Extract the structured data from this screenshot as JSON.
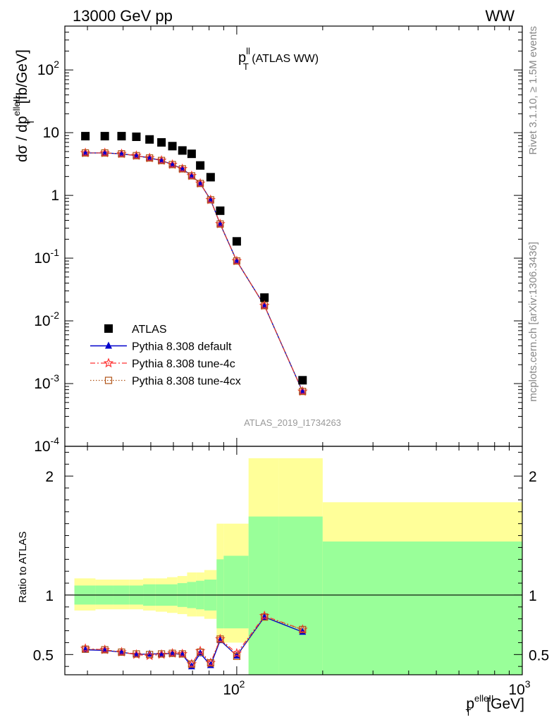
{
  "header": {
    "left": "13000 GeV pp",
    "right": "WW"
  },
  "side_text": {
    "rivet": "Rivet 3.1.10, ≥ 1.5M events",
    "mcplots": "mcplots.cern.ch [arXiv:1306.3436]"
  },
  "watermark": "ATLAS_2019_I1734263",
  "plot_title": {
    "main": "p",
    "sup": "ll",
    "sub": "T",
    "rest": " (ATLAS WW)"
  },
  "colors": {
    "atlas": "#000000",
    "default": "#0000cc",
    "tune4c": "#ff3333",
    "tune4cx": "#b05418",
    "band_inner": "#99ff99",
    "band_outer": "#ffff99"
  },
  "chart_data": [
    {
      "type": "scatter",
      "panel": "main",
      "ylabel": "dσ / dp_T^{elle ll} [fb/GeV]",
      "xscale": "log",
      "yscale": "log",
      "xlim": [
        25,
        1000
      ],
      "ylim": [
        0.0001,
        500
      ],
      "y_tick_labels": [
        "10^{-4}",
        "10^{-3}",
        "10^{-2}",
        "10^{-1}",
        "1",
        "10",
        "10^{2}"
      ],
      "legend_position": "lower-left",
      "x_bin_edges": [
        27,
        32,
        37,
        42,
        47,
        52,
        57,
        62,
        67,
        72,
        77,
        85,
        90,
        110,
        140,
        200,
        1000
      ],
      "x": [
        29.5,
        34.5,
        39.5,
        44.5,
        49.5,
        54.5,
        59.5,
        64.5,
        69.5,
        74.5,
        81,
        87.5,
        100,
        125,
        170,
        600
      ],
      "series": [
        {
          "name": "ATLAS",
          "marker": "square",
          "values": [
            8.8,
            8.8,
            8.8,
            8.6,
            7.8,
            7.0,
            6.1,
            5.2,
            4.6,
            3.0,
            1.95,
            0.57,
            0.185,
            0.0235,
            0.00113,
            null
          ]
        },
        {
          "name": "Pythia 8.308 default",
          "marker": "triangle",
          "line": "solid",
          "values": [
            4.75,
            4.75,
            4.6,
            4.3,
            3.95,
            3.6,
            3.1,
            2.65,
            2.05,
            1.55,
            0.85,
            0.35,
            0.09,
            0.0175,
            0.00075,
            null
          ]
        },
        {
          "name": "Pythia 8.308 tune-4c",
          "marker": "star",
          "line": "dashdot",
          "values": [
            4.75,
            4.75,
            4.6,
            4.3,
            3.95,
            3.6,
            3.1,
            2.65,
            2.05,
            1.55,
            0.85,
            0.35,
            0.09,
            0.0175,
            0.00075,
            null
          ]
        },
        {
          "name": "Pythia 8.308 tune-4cx",
          "marker": "open-square",
          "line": "dotted",
          "values": [
            4.75,
            4.75,
            4.6,
            4.3,
            3.95,
            3.6,
            3.1,
            2.65,
            2.05,
            1.55,
            0.85,
            0.35,
            0.09,
            0.0175,
            0.00075,
            null
          ]
        }
      ]
    },
    {
      "type": "line",
      "panel": "ratio",
      "ylabel": "Ratio to ATLAS",
      "xlabel": "p_T^{elle ll} [GeV]",
      "xscale": "log",
      "xlim": [
        25,
        1000
      ],
      "ylim": [
        0.33,
        2.25
      ],
      "y_tick_labels": [
        "0.5",
        "1",
        "2"
      ],
      "x_tick_labels": [
        "10^{2}",
        "10^{3}"
      ],
      "band_edges": [
        27,
        32,
        37,
        42,
        47,
        52,
        57,
        62,
        67,
        72,
        77,
        85,
        90,
        110,
        140,
        200,
        1000
      ],
      "band_inner": [
        [
          0.92,
          1.08
        ],
        [
          0.92,
          1.08
        ],
        [
          0.92,
          1.08
        ],
        [
          0.92,
          1.08
        ],
        [
          0.91,
          1.09
        ],
        [
          0.91,
          1.09
        ],
        [
          0.91,
          1.09
        ],
        [
          0.9,
          1.1
        ],
        [
          0.89,
          1.11
        ],
        [
          0.88,
          1.12
        ],
        [
          0.87,
          1.13
        ],
        [
          0.72,
          1.3
        ],
        [
          0.72,
          1.33
        ],
        [
          0.33,
          1.66
        ],
        [
          0.33,
          1.66
        ],
        [
          0.33,
          1.45
        ]
      ],
      "band_outer": [
        [
          0.87,
          1.14
        ],
        [
          0.88,
          1.13
        ],
        [
          0.88,
          1.13
        ],
        [
          0.88,
          1.13
        ],
        [
          0.87,
          1.14
        ],
        [
          0.86,
          1.14
        ],
        [
          0.85,
          1.15
        ],
        [
          0.84,
          1.16
        ],
        [
          0.82,
          1.19
        ],
        [
          0.82,
          1.19
        ],
        [
          0.8,
          1.21
        ],
        [
          0.6,
          1.6
        ],
        [
          0.6,
          1.6
        ],
        [
          0.0,
          2.15
        ],
        [
          0.0,
          2.15
        ],
        [
          0.68,
          1.78
        ]
      ],
      "x": [
        29.5,
        34.5,
        39.5,
        44.5,
        49.5,
        54.5,
        59.5,
        64.5,
        69.5,
        74.5,
        81,
        87.5,
        100,
        125,
        170,
        600
      ],
      "series": [
        {
          "name": "Pythia 8.308 default",
          "values": [
            0.54,
            0.535,
            0.52,
            0.5,
            0.505,
            0.505,
            0.51,
            0.5,
            0.4,
            0.51,
            0.41,
            0.62,
            0.49,
            0.815,
            0.69,
            null
          ]
        },
        {
          "name": "Pythia 8.308 tune-4c",
          "values": [
            0.55,
            0.54,
            0.52,
            0.5,
            0.49,
            0.5,
            0.51,
            0.505,
            0.42,
            0.53,
            0.43,
            0.63,
            0.51,
            0.825,
            0.71,
            null
          ]
        },
        {
          "name": "Pythia 8.308 tune-4cx",
          "values": [
            0.545,
            0.54,
            0.52,
            0.505,
            0.5,
            0.505,
            0.51,
            0.505,
            0.42,
            0.52,
            0.43,
            0.63,
            0.485,
            0.815,
            0.71,
            null
          ]
        }
      ]
    }
  ]
}
